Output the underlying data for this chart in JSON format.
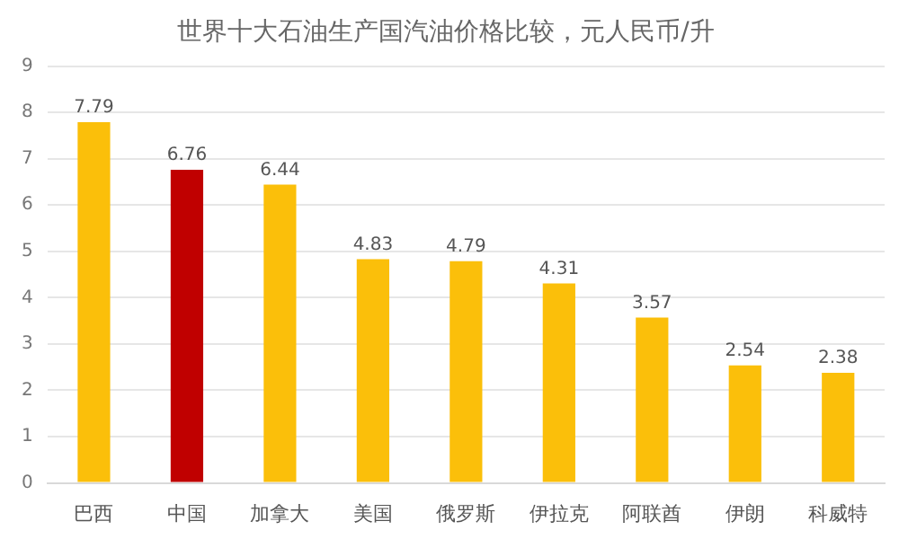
{
  "chart_data": {
    "type": "bar",
    "title": "世界十大石油生产国汽油价格比较，元人民币/升",
    "categories": [
      "巴西",
      "中国",
      "加拿大",
      "美国",
      "俄罗斯",
      "伊拉克",
      "阿联酋",
      "伊朗",
      "科威特"
    ],
    "values": [
      7.79,
      6.76,
      6.44,
      4.83,
      4.79,
      4.31,
      3.57,
      2.54,
      2.38
    ],
    "colors": [
      "#fbbf0a",
      "#c00000",
      "#fbbf0a",
      "#fbbf0a",
      "#fbbf0a",
      "#fbbf0a",
      "#fbbf0a",
      "#fbbf0a",
      "#fbbf0a"
    ],
    "ylim": [
      0,
      9
    ],
    "yticks": [
      0,
      1,
      2,
      3,
      4,
      5,
      6,
      7,
      8,
      9
    ],
    "grid": "y",
    "data_labels": true
  }
}
